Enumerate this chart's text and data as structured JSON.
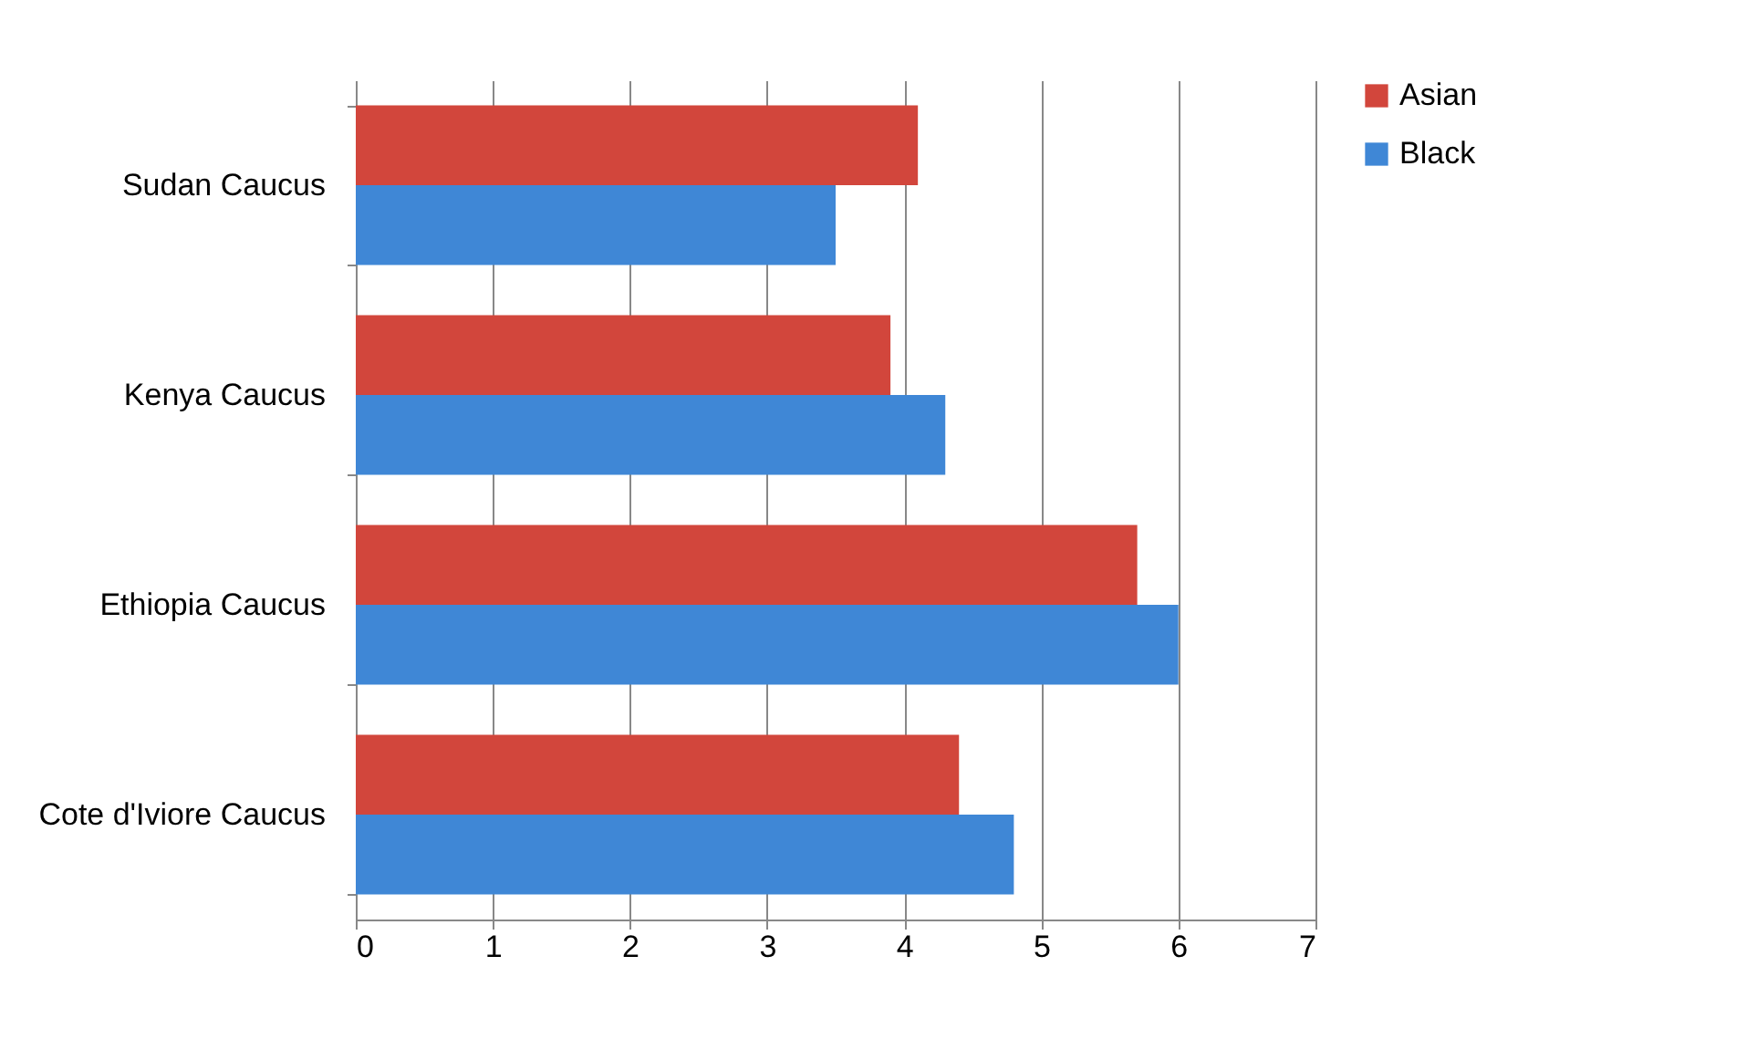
{
  "chart_data": {
    "type": "bar",
    "orientation": "horizontal",
    "categories": [
      "Sudan Caucus",
      "Kenya Caucus",
      "Ethiopia Caucus",
      "Cote d'Iviore Caucus"
    ],
    "series": [
      {
        "name": "Asian",
        "color": "#d2463c",
        "values": [
          4.1,
          3.9,
          5.7,
          4.4
        ]
      },
      {
        "name": "Black",
        "color": "#3f87d6",
        "values": [
          3.5,
          4.3,
          6.0,
          4.8
        ]
      }
    ],
    "xlim": [
      0,
      7
    ],
    "xticks": [
      0,
      1,
      2,
      3,
      4,
      5,
      6,
      7
    ],
    "grid": "x",
    "legend": "right"
  }
}
